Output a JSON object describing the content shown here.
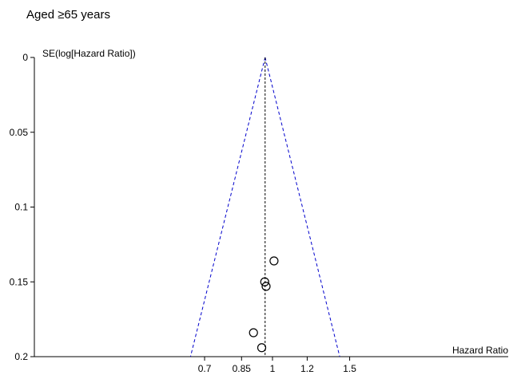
{
  "title": "Aged ≥65 years",
  "chart_data": {
    "type": "scatter",
    "subtype": "funnel-plot",
    "title": "Aged ≥65 years",
    "xlabel": "Hazard Ratio",
    "ylabel": "SE(log[Hazard Ratio])",
    "x_scale": "log",
    "x_ticks": [
      0.7,
      0.85,
      1,
      1.2,
      1.5
    ],
    "x_tick_labels": [
      "0.7",
      "0.85",
      "1",
      "1.2",
      "1.5"
    ],
    "y_ticks": [
      0,
      0.05,
      0.1,
      0.15,
      0.2
    ],
    "y_tick_labels": [
      "0",
      "0.05",
      "0.1",
      "0.15",
      "0.2"
    ],
    "y_reversed": true,
    "ylim": [
      0,
      0.2
    ],
    "pooled_estimate": 0.962,
    "points": [
      {
        "x": 1.008,
        "y": 0.136
      },
      {
        "x": 0.96,
        "y": 0.15
      },
      {
        "x": 0.967,
        "y": 0.153
      },
      {
        "x": 0.905,
        "y": 0.184
      },
      {
        "x": 0.945,
        "y": 0.194
      }
    ],
    "grid": false,
    "colors": {
      "funnel": "#0000cc",
      "pooled_line": "#000000",
      "points": "#000000"
    }
  }
}
